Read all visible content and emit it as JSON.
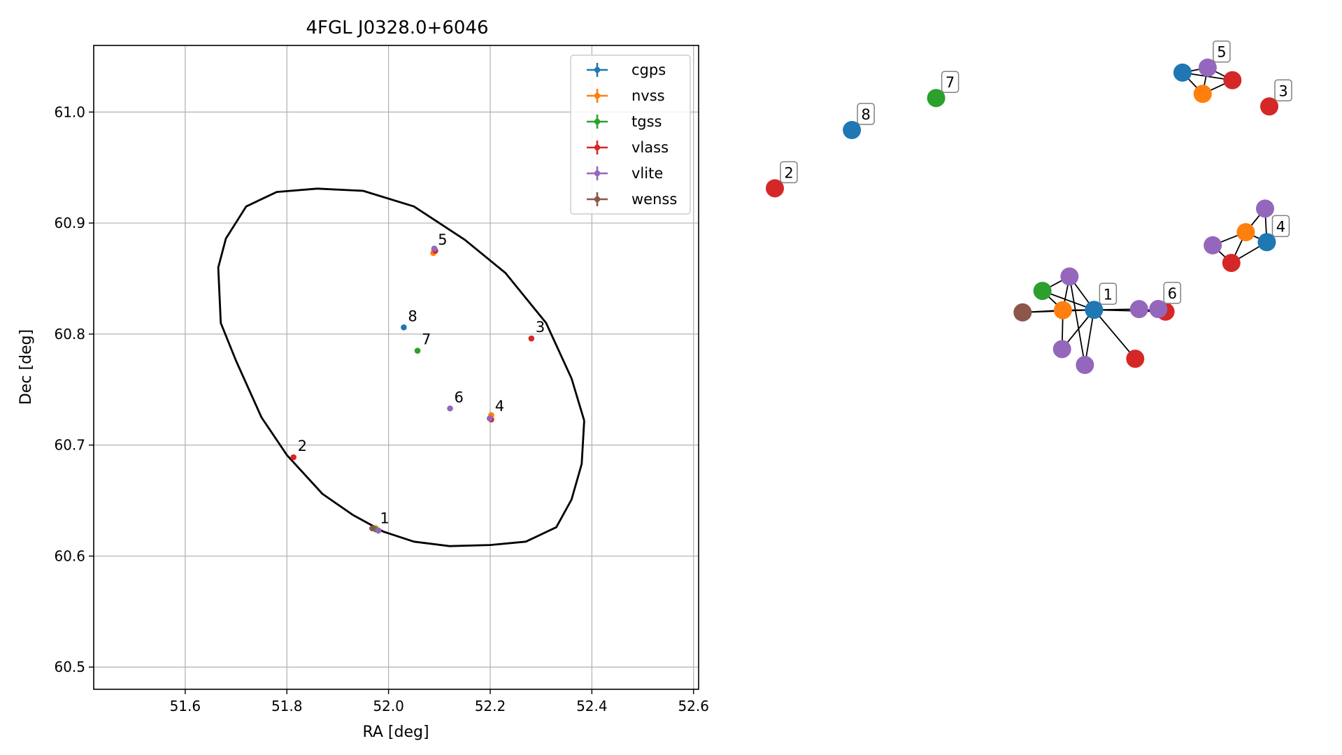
{
  "chart_data": [
    {
      "type": "scatter",
      "title": "4FGL J0328.0+6046",
      "xlabel": "RA [deg]",
      "ylabel": "Dec [deg]",
      "xlim": [
        51.42,
        52.61
      ],
      "ylim": [
        60.48,
        61.06
      ],
      "xticks": [
        "51.6",
        "51.8",
        "52.0",
        "52.2",
        "52.4",
        "52.6"
      ],
      "yticks": [
        "60.5",
        "60.6",
        "60.7",
        "60.8",
        "60.9",
        "61.0"
      ],
      "grid": true,
      "legend_position": "top-right",
      "series": [
        {
          "name": "cgps",
          "color": "#1f77b4",
          "points": [
            {
              "x": 52.03,
              "y": 60.806
            },
            {
              "x": 52.2,
              "y": 60.724
            },
            {
              "x": 52.09,
              "y": 60.876
            },
            {
              "x": 51.975,
              "y": 60.624
            }
          ]
        },
        {
          "name": "nvss",
          "color": "#ff7f0e",
          "points": [
            {
              "x": 52.088,
              "y": 60.873
            },
            {
              "x": 52.202,
              "y": 60.727
            },
            {
              "x": 51.975,
              "y": 60.625
            }
          ]
        },
        {
          "name": "tgss",
          "color": "#2ca02c",
          "points": [
            {
              "x": 52.057,
              "y": 60.785
            },
            {
              "x": 51.972,
              "y": 60.625
            }
          ]
        },
        {
          "name": "vlass",
          "color": "#d62728",
          "points": [
            {
              "x": 51.813,
              "y": 60.689
            },
            {
              "x": 52.281,
              "y": 60.796
            },
            {
              "x": 52.092,
              "y": 60.875
            },
            {
              "x": 52.202,
              "y": 60.723
            },
            {
              "x": 51.98,
              "y": 60.623
            }
          ]
        },
        {
          "name": "vlite",
          "color": "#9467bd",
          "points": [
            {
              "x": 52.121,
              "y": 60.733
            },
            {
              "x": 52.09,
              "y": 60.877
            },
            {
              "x": 52.199,
              "y": 60.724
            },
            {
              "x": 51.98,
              "y": 60.623
            }
          ]
        },
        {
          "name": "wenss",
          "color": "#8c564b",
          "points": [
            {
              "x": 51.968,
              "y": 60.625
            }
          ]
        }
      ],
      "annotations": [
        {
          "text": "1",
          "x": 51.975,
          "y": 60.624
        },
        {
          "text": "2",
          "x": 51.813,
          "y": 60.689
        },
        {
          "text": "3",
          "x": 52.281,
          "y": 60.796
        },
        {
          "text": "4",
          "x": 52.201,
          "y": 60.725
        },
        {
          "text": "5",
          "x": 52.089,
          "y": 60.875
        },
        {
          "text": "6",
          "x": 52.121,
          "y": 60.733
        },
        {
          "text": "7",
          "x": 52.057,
          "y": 60.785
        },
        {
          "text": "8",
          "x": 52.03,
          "y": 60.806
        }
      ],
      "ellipse": {
        "center": [
          52.024,
          60.77
        ],
        "points": [
          [
            52.385,
            60.722
          ],
          [
            52.38,
            60.683
          ],
          [
            52.36,
            60.651
          ],
          [
            52.33,
            60.626
          ],
          [
            52.27,
            60.613
          ],
          [
            52.2,
            60.61
          ],
          [
            52.12,
            60.609
          ],
          [
            52.05,
            60.613
          ],
          [
            51.99,
            60.622
          ],
          [
            51.93,
            60.637
          ],
          [
            51.87,
            60.656
          ],
          [
            51.8,
            60.691
          ],
          [
            51.75,
            60.725
          ],
          [
            51.7,
            60.776
          ],
          [
            51.67,
            60.81
          ],
          [
            51.665,
            60.86
          ],
          [
            51.68,
            60.886
          ],
          [
            51.72,
            60.915
          ],
          [
            51.78,
            60.928
          ],
          [
            51.86,
            60.931
          ],
          [
            51.95,
            60.929
          ],
          [
            52.05,
            60.915
          ],
          [
            52.15,
            60.885
          ],
          [
            52.23,
            60.855
          ],
          [
            52.31,
            60.81
          ],
          [
            52.36,
            60.76
          ],
          [
            52.385,
            60.722
          ]
        ]
      }
    },
    {
      "type": "network-graph",
      "nodes": [
        {
          "id": "n1",
          "color": "#1f77b4",
          "x": 0.6455,
          "y": 0.3013,
          "label": "1"
        },
        {
          "id": "n2",
          "color": "#ff7f0e",
          "x": 0.5826,
          "y": 0.3004
        },
        {
          "id": "n3",
          "color": "#2ca02c",
          "x": 0.5412,
          "y": 0.3559
        },
        {
          "id": "n4",
          "color": "#8c564b",
          "x": 0.5011,
          "y": 0.294
        },
        {
          "id": "n5",
          "color": "#9467bd",
          "x": 0.596,
          "y": 0.3974
        },
        {
          "id": "n6",
          "color": "#9467bd",
          "x": 0.7367,
          "y": 0.3035
        },
        {
          "id": "n7",
          "color": "#d62728",
          "x": 0.7901,
          "y": 0.2962
        },
        {
          "id": "n8",
          "color": "#9467bd",
          "x": 0.5809,
          "y": 0.1884
        },
        {
          "id": "n9",
          "color": "#9467bd",
          "x": 0.6271,
          "y": 0.1428
        },
        {
          "id": "n10",
          "color": "#d62728",
          "x": 0.7289,
          "y": 0.1606
        },
        {
          "id": "n11",
          "color": "#d62728",
          "x": 0.0,
          "y": 0.6512,
          "label": "2"
        },
        {
          "id": "n12",
          "color": "#d62728",
          "x": 1.0,
          "y": 0.8868,
          "label": "3"
        },
        {
          "id": "n13",
          "color": "#1f77b4",
          "x": 0.995,
          "y": 0.4962,
          "label": "4"
        },
        {
          "id": "n14",
          "color": "#ff7f0e",
          "x": 0.9525,
          "y": 0.5249
        },
        {
          "id": "n15",
          "color": "#9467bd",
          "x": 0.9915,
          "y": 0.5929
        },
        {
          "id": "n16",
          "color": "#d62728",
          "x": 0.9233,
          "y": 0.4364
        },
        {
          "id": "n17",
          "color": "#9467bd",
          "x": 0.8856,
          "y": 0.4871
        },
        {
          "id": "n18",
          "color": "#9467bd",
          "x": 0.8754,
          "y": 0.9985,
          "label": "5"
        },
        {
          "id": "n19",
          "color": "#1f77b4",
          "x": 0.8245,
          "y": 0.9842
        },
        {
          "id": "n20",
          "color": "#ff7f0e",
          "x": 0.8653,
          "y": 0.923
        },
        {
          "id": "n21",
          "color": "#d62728",
          "x": 0.9255,
          "y": 0.9623
        },
        {
          "id": "n22",
          "color": "#9467bd",
          "x": 0.7755,
          "y": 0.3037,
          "label": "6"
        },
        {
          "id": "n23",
          "color": "#2ca02c",
          "x": 0.3262,
          "y": 0.911,
          "label": "7"
        },
        {
          "id": "n24",
          "color": "#1f77b4",
          "x": 0.1558,
          "y": 0.8189,
          "label": "8"
        }
      ],
      "edges": [
        [
          "n1",
          "n2"
        ],
        [
          "n1",
          "n3"
        ],
        [
          "n1",
          "n4"
        ],
        [
          "n1",
          "n5"
        ],
        [
          "n1",
          "n6"
        ],
        [
          "n1",
          "n7"
        ],
        [
          "n1",
          "n8"
        ],
        [
          "n1",
          "n9"
        ],
        [
          "n1",
          "n10"
        ],
        [
          "n2",
          "n3"
        ],
        [
          "n2",
          "n4"
        ],
        [
          "n2",
          "n5"
        ],
        [
          "n2",
          "n8"
        ],
        [
          "n3",
          "n5"
        ],
        [
          "n5",
          "n9"
        ],
        [
          "n6",
          "n7"
        ],
        [
          "n13",
          "n14"
        ],
        [
          "n13",
          "n15"
        ],
        [
          "n13",
          "n16"
        ],
        [
          "n14",
          "n16"
        ],
        [
          "n14",
          "n17"
        ],
        [
          "n16",
          "n17"
        ],
        [
          "n14",
          "n15"
        ],
        [
          "n18",
          "n19"
        ],
        [
          "n18",
          "n20"
        ],
        [
          "n18",
          "n21"
        ],
        [
          "n19",
          "n20"
        ],
        [
          "n19",
          "n21"
        ],
        [
          "n20",
          "n21"
        ]
      ]
    }
  ]
}
